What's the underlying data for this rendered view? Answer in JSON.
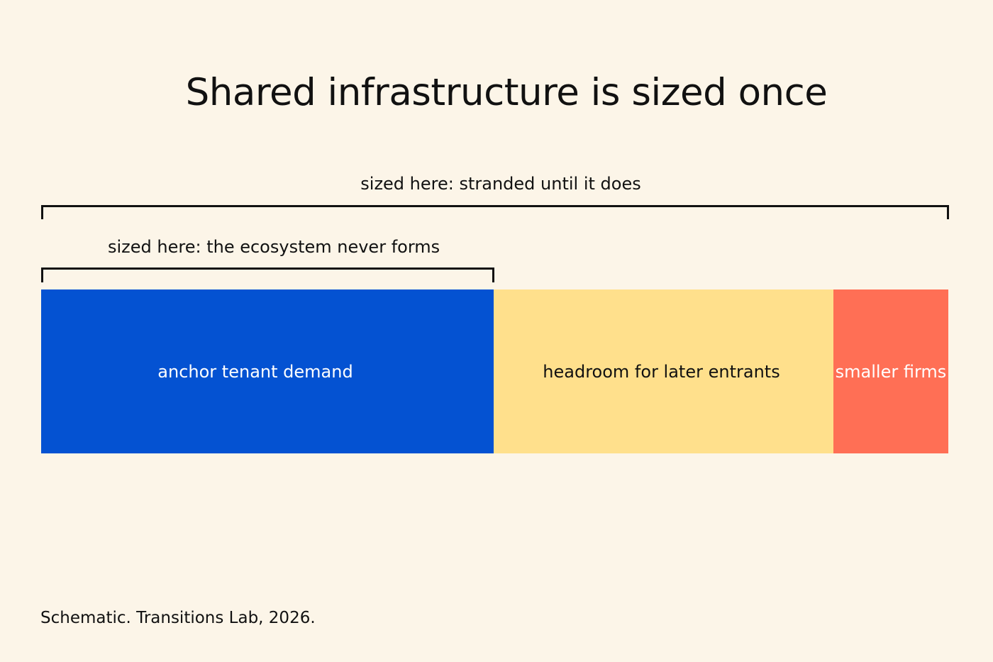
{
  "title": "Shared infrastructure is sized once",
  "brackets": {
    "outer_label": "sized here: stranded until it does",
    "inner_label": "sized here: the ecosystem never forms"
  },
  "segments": [
    {
      "label": "anchor tenant demand",
      "color": "#0452d2"
    },
    {
      "label": "headroom for later entrants",
      "color": "#ffe08c"
    },
    {
      "label": "smaller firms",
      "color": "#ff6f55"
    }
  ],
  "footnote": "Schematic. Transitions Lab, 2026."
}
